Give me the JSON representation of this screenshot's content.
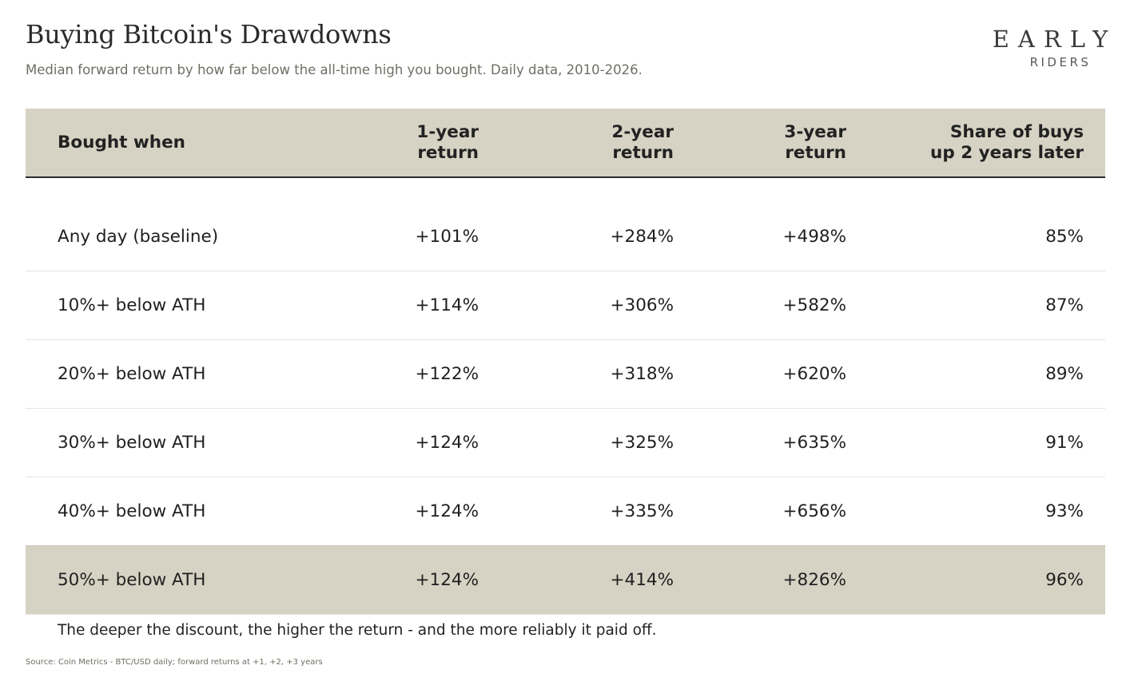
{
  "title": "Buying Bitcoin's Drawdowns",
  "subtitle": "Median forward return by how far below the all-time high you bought. Daily data, 2010-2026.",
  "logo": {
    "main": "EARLY",
    "sub": "RIDERS"
  },
  "chart_data": {
    "type": "table",
    "columns": [
      {
        "line1": "Bought when",
        "line2": ""
      },
      {
        "line1": "1-year",
        "line2": "return"
      },
      {
        "line1": "2-year",
        "line2": "return"
      },
      {
        "line1": "3-year",
        "line2": "return"
      },
      {
        "line1": "Share of buys",
        "line2": "up 2 years later"
      }
    ],
    "rows": [
      {
        "label": "Any day (baseline)",
        "values": [
          "+101%",
          "+284%",
          "+498%",
          "85%"
        ],
        "highlight": false
      },
      {
        "label": "10%+ below ATH",
        "values": [
          "+114%",
          "+306%",
          "+582%",
          "87%"
        ],
        "highlight": false
      },
      {
        "label": "20%+ below ATH",
        "values": [
          "+122%",
          "+318%",
          "+620%",
          "89%"
        ],
        "highlight": false
      },
      {
        "label": "30%+ below ATH",
        "values": [
          "+124%",
          "+325%",
          "+635%",
          "91%"
        ],
        "highlight": false
      },
      {
        "label": "40%+ below ATH",
        "values": [
          "+124%",
          "+335%",
          "+656%",
          "93%"
        ],
        "highlight": false
      },
      {
        "label": "50%+ below ATH",
        "values": [
          "+124%",
          "+414%",
          "+826%",
          "96%"
        ],
        "highlight": true
      }
    ],
    "highlight_color": "#d6d3c4"
  },
  "footnote": "The deeper the discount, the higher the return - and the more reliably it paid off.",
  "source": "Source: Coin Metrics - BTC/USD daily; forward returns at +1, +2, +3 years"
}
